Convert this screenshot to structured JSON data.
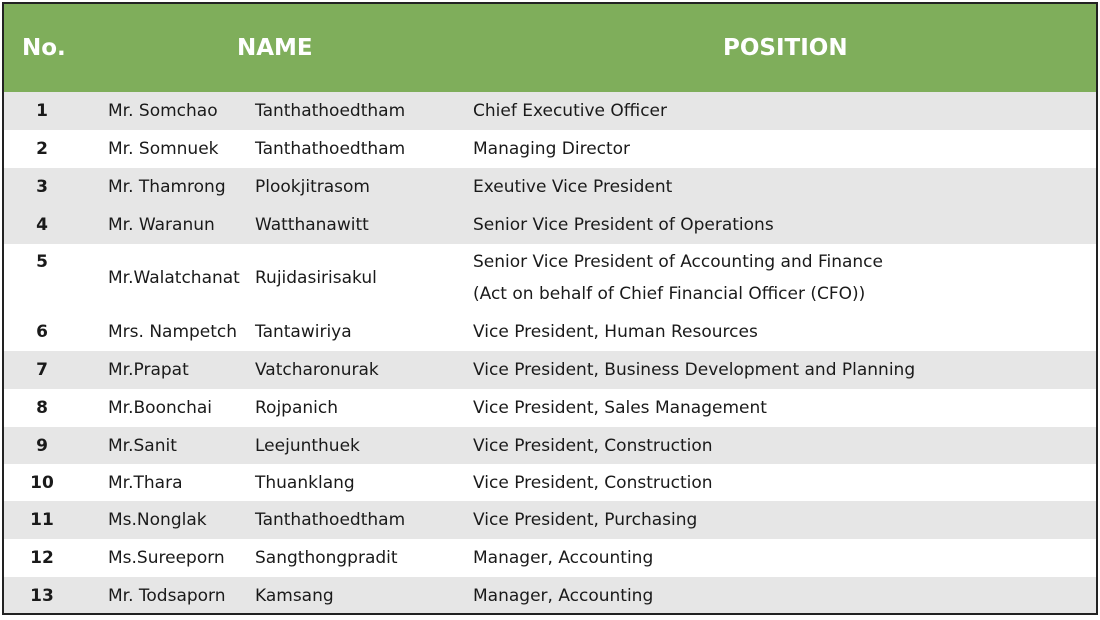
{
  "header": {
    "no": "No.",
    "name": "NAME",
    "position": "POSITION"
  },
  "colors": {
    "header_bg": "#7fae5b",
    "header_text": "#ffffff",
    "shaded_row": "#e6e6e6"
  },
  "rows": [
    {
      "no": "1",
      "first": "Mr. Somchao",
      "last": "Tanthathoedtham",
      "position": "Chief Executive Officer"
    },
    {
      "no": "2",
      "first": "Mr. Somnuek",
      "last": "Tanthathoedtham",
      "position": "Managing Director"
    },
    {
      "no": "3",
      "first": "Mr. Thamrong",
      "last": "Plookjitrasom",
      "position": "Exeutive Vice President"
    },
    {
      "no": "4",
      "first": "Mr. Waranun",
      "last": "Watthanawitt",
      "position": "Senior Vice President of Operations"
    },
    {
      "no": "5",
      "first": "Mr.Walatchanat",
      "last": "Rujidasirisakul",
      "position": "Senior Vice President of Accounting and Finance",
      "position_line2": "(Act on behalf of Chief Financial Officer (CFO))"
    },
    {
      "no": "6",
      "first": "Mrs. Nampetch",
      "last": "Tantawiriya",
      "position": "Vice President, Human Resources"
    },
    {
      "no": "7",
      "first": "Mr.Prapat",
      "last": "Vatcharonurak",
      "position": "Vice President, Business Development and Planning"
    },
    {
      "no": "8",
      "first": "Mr.Boonchai",
      "last": "Rojpanich",
      "position": "Vice President, Sales Management"
    },
    {
      "no": "9",
      "first": "Mr.Sanit",
      "last": "Leejunthuek",
      "position": "Vice President, Construction"
    },
    {
      "no": "10",
      "first": "Mr.Thara",
      "last": "Thuanklang",
      "position": "Vice President, Construction"
    },
    {
      "no": "11",
      "first": "Ms.Nonglak",
      "last": "Tanthathoedtham",
      "position": "Vice President, Purchasing"
    },
    {
      "no": "12",
      "first": "Ms.Sureeporn",
      "last": "Sangthongpradit",
      "position": "Manager, Accounting"
    },
    {
      "no": "13",
      "first": "Mr. Todsaporn",
      "last": "Kamsang",
      "position": "Manager, Accounting"
    }
  ]
}
